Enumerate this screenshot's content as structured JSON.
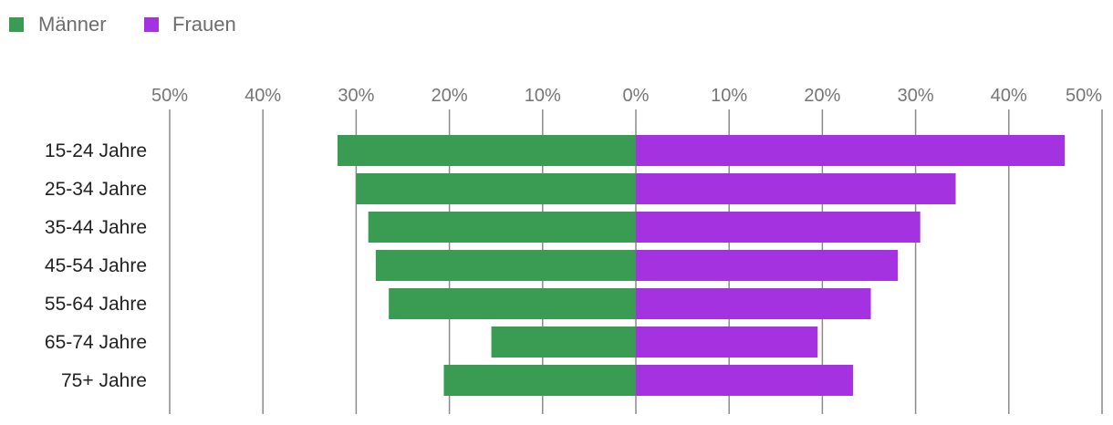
{
  "chart_data": {
    "type": "bar",
    "orientation": "horizontal-diverging",
    "categories": [
      "15-24 Jahre",
      "25-34 Jahre",
      "35-44 Jahre",
      "45-54 Jahre",
      "55-64 Jahre",
      "65-74 Jahre",
      "75+ Jahre"
    ],
    "series": [
      {
        "name": "Männer",
        "color": "#3a9c52",
        "side": "left",
        "values": [
          32,
          30,
          28.7,
          27.9,
          26.5,
          15.5,
          20.6
        ]
      },
      {
        "name": "Frauen",
        "color": "#a432e0",
        "side": "right",
        "values": [
          46,
          34.3,
          30.5,
          28.1,
          25.2,
          19.5,
          23.3
        ]
      }
    ],
    "x_ticks_left": [
      "50%",
      "40%",
      "30%",
      "20%",
      "10%"
    ],
    "x_ticks_right": [
      "0%",
      "10%",
      "20%",
      "30%",
      "40%",
      "50%"
    ],
    "xlim": [
      -50,
      50
    ],
    "grid": true,
    "legend_position": "top-left"
  }
}
